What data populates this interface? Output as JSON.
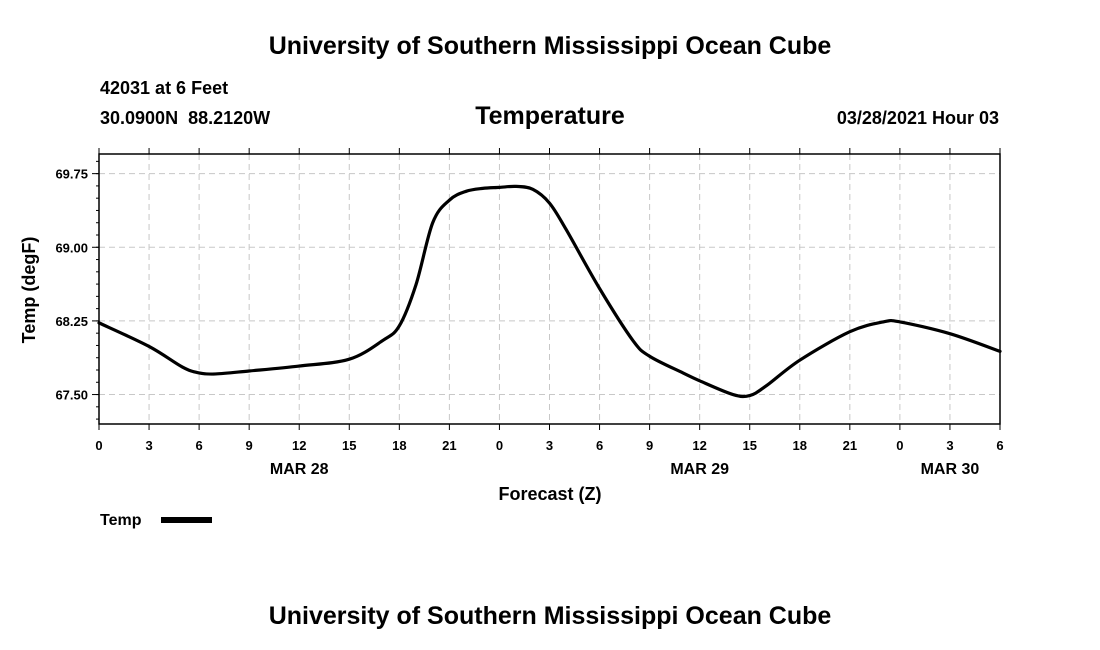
{
  "page": {
    "title_top": "University of Southern Mississippi Ocean Cube",
    "title_bottom": "University of Southern Mississippi Ocean Cube",
    "station_line": "42031 at 6 Feet",
    "location_line": "30.0900N  88.2120W",
    "plot_title": "Temperature",
    "timestamp": "03/28/2021 Hour 03"
  },
  "chart_data": {
    "type": "line",
    "title": "Temperature",
    "xlabel": "Forecast (Z)",
    "ylabel": "Temp (degF)",
    "xlim": [
      0,
      54
    ],
    "ylim": [
      67.2,
      69.95
    ],
    "grid": true,
    "legend_placement": "bottom-left",
    "x_ticks": [
      {
        "x": 0,
        "label": "0"
      },
      {
        "x": 3,
        "label": "3"
      },
      {
        "x": 6,
        "label": "6"
      },
      {
        "x": 9,
        "label": "9"
      },
      {
        "x": 12,
        "label": "12"
      },
      {
        "x": 15,
        "label": "15"
      },
      {
        "x": 18,
        "label": "18"
      },
      {
        "x": 21,
        "label": "21"
      },
      {
        "x": 24,
        "label": "0"
      },
      {
        "x": 27,
        "label": "3"
      },
      {
        "x": 30,
        "label": "6"
      },
      {
        "x": 33,
        "label": "9"
      },
      {
        "x": 36,
        "label": "12"
      },
      {
        "x": 39,
        "label": "15"
      },
      {
        "x": 42,
        "label": "18"
      },
      {
        "x": 45,
        "label": "21"
      },
      {
        "x": 48,
        "label": "0"
      },
      {
        "x": 51,
        "label": "3"
      },
      {
        "x": 54,
        "label": "6"
      }
    ],
    "date_labels": [
      {
        "x": 12,
        "label": "MAR 28"
      },
      {
        "x": 36,
        "label": "MAR 29"
      },
      {
        "x": 51,
        "label": "MAR 30"
      }
    ],
    "y_ticks": [
      {
        "y": 67.5,
        "label": "67.50"
      },
      {
        "y": 68.25,
        "label": "68.25"
      },
      {
        "y": 69.0,
        "label": "69.00"
      },
      {
        "y": 69.75,
        "label": "69.75"
      }
    ],
    "series": [
      {
        "name": "Temp",
        "color": "#000000",
        "x": [
          0,
          3,
          5,
          6,
          7,
          9,
          12,
          15,
          17,
          18,
          19,
          20,
          21,
          22,
          23,
          24,
          25,
          26,
          27,
          28,
          30,
          32,
          33,
          35,
          36,
          38,
          39,
          40,
          42,
          45,
          47,
          48,
          51,
          54
        ],
        "y": [
          68.23,
          67.99,
          67.78,
          67.72,
          67.71,
          67.74,
          67.79,
          67.86,
          68.05,
          68.2,
          68.62,
          69.25,
          69.48,
          69.57,
          69.6,
          69.61,
          69.62,
          69.59,
          69.45,
          69.18,
          68.58,
          68.05,
          67.89,
          67.72,
          67.64,
          67.5,
          67.49,
          67.59,
          67.85,
          68.14,
          68.24,
          68.24,
          68.12,
          67.94
        ]
      }
    ]
  }
}
